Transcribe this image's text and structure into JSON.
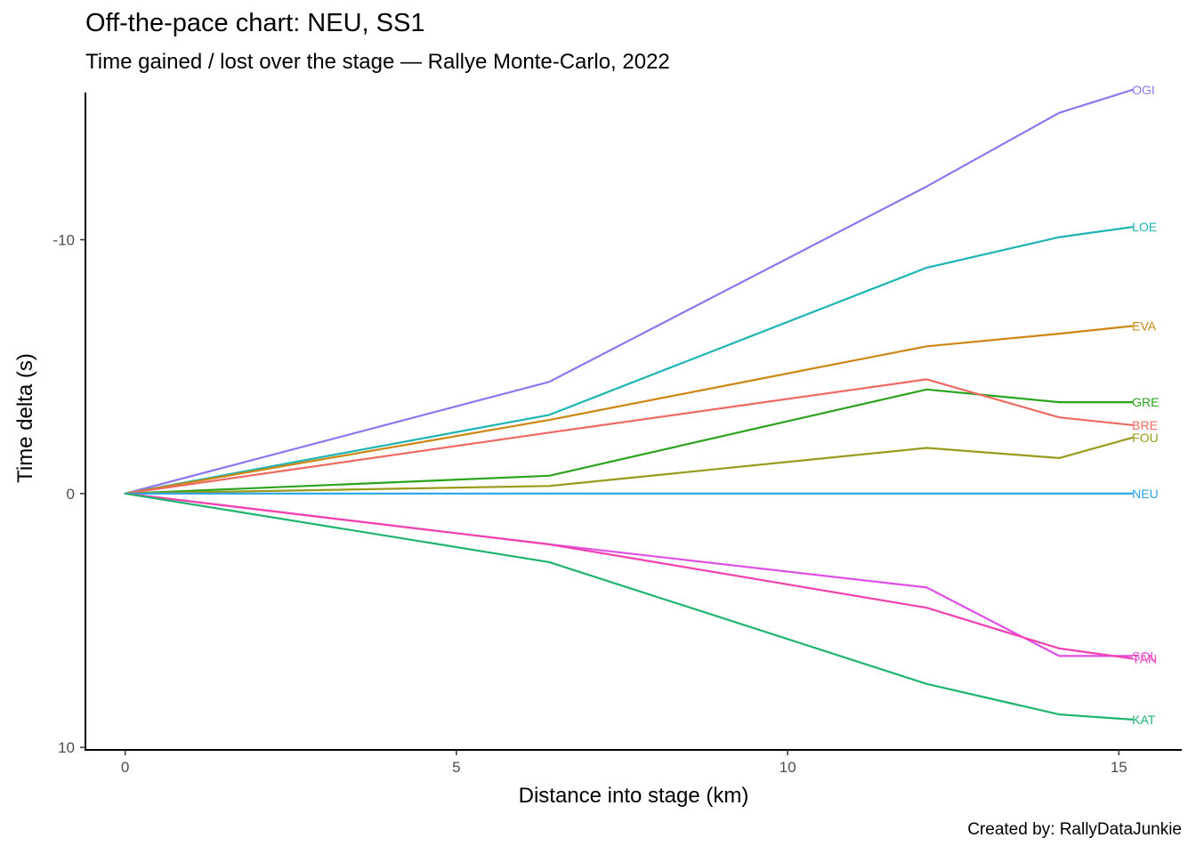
{
  "chart_data": {
    "type": "line",
    "title": "Off-the-pace chart: NEU, SS1",
    "subtitle": "Time gained / lost over the stage — Rallye Monte-Carlo, 2022",
    "caption": "Created by: RallyDataJunkie",
    "xlabel": "Distance into stage (km)",
    "ylabel": "Time delta (s)",
    "xlim": [
      -0.6,
      15.95
    ],
    "ylim": [
      -15.8,
      10.1
    ],
    "y_reversed": true,
    "x_ticks": [
      0,
      5,
      10,
      15
    ],
    "y_ticks": [
      -10,
      0,
      10
    ],
    "y_tick_labels": [
      "-10",
      "0",
      "10"
    ],
    "grid": false,
    "legend": "none",
    "series": [
      {
        "name": "OGI",
        "color": "#8b78f0",
        "x": [
          0,
          6.4,
          12.1,
          14.1,
          15.2
        ],
        "y": [
          0,
          -4.4,
          -12.1,
          -15.0,
          -15.9
        ]
      },
      {
        "name": "LOE",
        "color": "#1eb4b4",
        "x": [
          0,
          6.4,
          12.1,
          14.1,
          15.2
        ],
        "y": [
          0,
          -3.1,
          -8.9,
          -10.1,
          -10.5
        ]
      },
      {
        "name": "EVA",
        "color": "#cd8612",
        "x": [
          0,
          6.4,
          12.1,
          14.1,
          15.2
        ],
        "y": [
          0,
          -2.9,
          -5.8,
          -6.3,
          -6.6
        ]
      },
      {
        "name": "GRE",
        "color": "#2aa41c",
        "x": [
          0,
          6.4,
          12.1,
          14.1,
          15.2
        ],
        "y": [
          0,
          -0.7,
          -4.1,
          -3.6,
          -3.6
        ]
      },
      {
        "name": "BRE",
        "color": "#ef6a62",
        "x": [
          0,
          6.4,
          12.1,
          14.1,
          15.2
        ],
        "y": [
          0,
          -2.4,
          -4.5,
          -3.0,
          -2.7
        ]
      },
      {
        "name": "FOU",
        "color": "#999b1a",
        "x": [
          0,
          6.4,
          12.1,
          14.1,
          15.2
        ],
        "y": [
          0,
          -0.3,
          -1.8,
          -1.4,
          -2.2
        ]
      },
      {
        "name": "NEU",
        "color": "#27a3ea",
        "x": [
          0,
          6.4,
          12.1,
          14.1,
          15.2
        ],
        "y": [
          0,
          0,
          0,
          0,
          0
        ]
      },
      {
        "name": "SOL",
        "color": "#e04fe6",
        "x": [
          0,
          6.4,
          12.1,
          14.1,
          15.2
        ],
        "y": [
          0,
          2.0,
          3.7,
          6.4,
          6.4
        ]
      },
      {
        "name": "TÄN",
        "color": "#f242b0",
        "x": [
          0,
          6.4,
          12.1,
          14.1,
          15.2
        ],
        "y": [
          0,
          2.0,
          4.5,
          6.1,
          6.5
        ]
      },
      {
        "name": "KAT",
        "color": "#1fb56e",
        "x": [
          0,
          6.4,
          12.1,
          14.1,
          15.2
        ],
        "y": [
          0,
          2.7,
          7.5,
          8.7,
          8.9
        ]
      }
    ]
  }
}
